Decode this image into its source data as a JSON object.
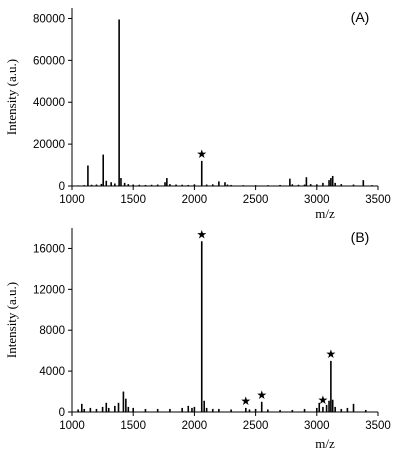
{
  "chart_data": [
    {
      "type": "bar",
      "panel_label": "(A)",
      "xlabel": "m/z",
      "ylabel": "Intensity (a.u.)",
      "xlim": [
        1000,
        3500
      ],
      "ylim": [
        0,
        85000
      ],
      "xticks": [
        1000,
        1500,
        2000,
        2500,
        3000,
        3500
      ],
      "yticks": [
        0,
        20000,
        40000,
        60000,
        80000
      ],
      "peaks": {
        "x": [
          1050,
          1100,
          1130,
          1160,
          1200,
          1240,
          1255,
          1280,
          1320,
          1350,
          1385,
          1400,
          1430,
          1460,
          1500,
          1550,
          1600,
          1650,
          1700,
          1760,
          1775,
          1800,
          1850,
          1900,
          1950,
          2000,
          2060,
          2100,
          2150,
          2200,
          2250,
          2270,
          2300,
          2400,
          2500,
          2600,
          2700,
          2780,
          2800,
          2850,
          2900,
          2915,
          2950,
          3000,
          3050,
          3100,
          3115,
          3130,
          3150,
          3200,
          3300,
          3380,
          3450
        ],
        "y": [
          300,
          400,
          9800,
          600,
          700,
          1000,
          15000,
          2500,
          1800,
          1200,
          79500,
          3800,
          1500,
          900,
          700,
          600,
          500,
          600,
          700,
          1800,
          3800,
          900,
          700,
          600,
          500,
          800,
          12000,
          700,
          800,
          2200,
          1800,
          700,
          500,
          400,
          400,
          400,
          500,
          3500,
          800,
          600,
          700,
          4200,
          900,
          800,
          1500,
          2800,
          3800,
          4800,
          1500,
          900,
          700,
          2800,
          400
        ]
      },
      "starred_x": [
        2060
      ]
    },
    {
      "type": "bar",
      "panel_label": "(B)",
      "xlabel": "m/z",
      "ylabel": "Intensity (a.u.)",
      "xlim": [
        1000,
        3500
      ],
      "ylim": [
        0,
        18000
      ],
      "xticks": [
        1000,
        1500,
        2000,
        2500,
        3000,
        3500
      ],
      "yticks": [
        0,
        4000,
        8000,
        12000,
        16000
      ],
      "peaks": {
        "x": [
          1050,
          1080,
          1100,
          1150,
          1200,
          1250,
          1280,
          1300,
          1350,
          1380,
          1420,
          1440,
          1460,
          1500,
          1600,
          1700,
          1800,
          1900,
          1950,
          1980,
          2000,
          2060,
          2080,
          2100,
          2150,
          2200,
          2300,
          2420,
          2450,
          2500,
          2550,
          2600,
          2700,
          2800,
          2900,
          3000,
          3020,
          3050,
          3080,
          3100,
          3115,
          3130,
          3150,
          3200,
          3250,
          3300,
          3400
        ],
        "y": [
          250,
          800,
          300,
          400,
          300,
          500,
          900,
          400,
          600,
          900,
          2000,
          1300,
          500,
          400,
          300,
          300,
          300,
          400,
          600,
          400,
          500,
          16700,
          1100,
          400,
          300,
          300,
          250,
          400,
          250,
          300,
          1000,
          250,
          200,
          200,
          300,
          400,
          900,
          500,
          700,
          1100,
          5000,
          1200,
          500,
          300,
          400,
          800,
          200
        ]
      },
      "starred_x": [
        2060,
        2420,
        2550,
        3050,
        3115
      ]
    }
  ]
}
